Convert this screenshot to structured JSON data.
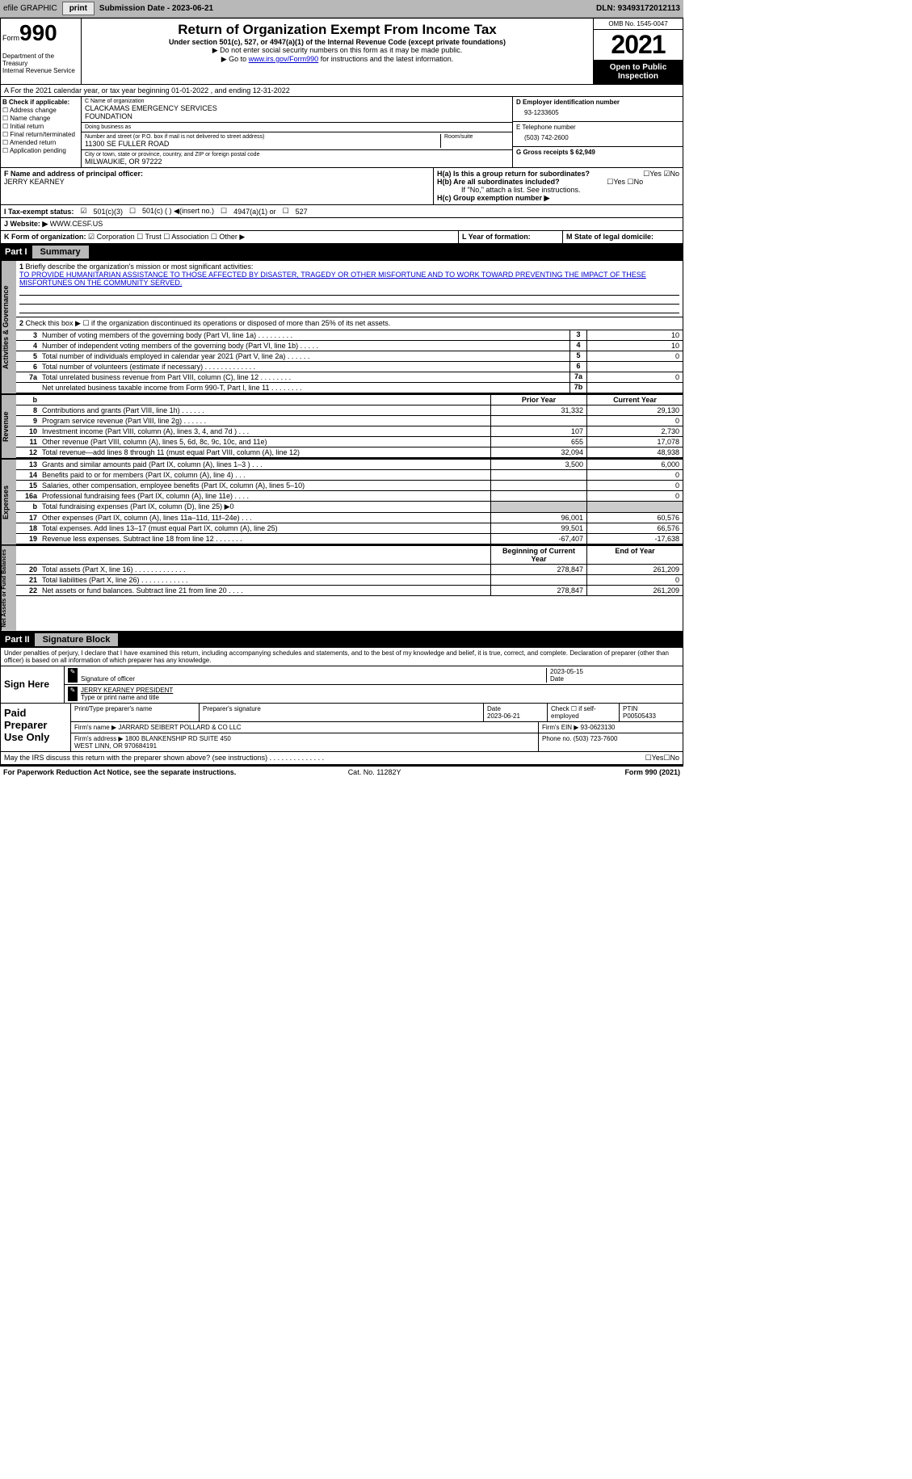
{
  "toolbar": {
    "efile": "efile GRAPHIC",
    "print": "print",
    "sub_label": "Submission Date - 2023-06-21",
    "dln": "DLN: 93493172012113"
  },
  "header": {
    "form": "Form",
    "f990": "990",
    "dept": "Department of the Treasury\nInternal Revenue Service",
    "title": "Return of Organization Exempt From Income Tax",
    "sub1": "Under section 501(c), 527, or 4947(a)(1) of the Internal Revenue Code (except private foundations)",
    "sub2": "▶ Do not enter social security numbers on this form as it may be made public.",
    "sub3_pre": "▶ Go to ",
    "sub3_link": "www.irs.gov/Form990",
    "sub3_post": " for instructions and the latest information.",
    "omb": "OMB No. 1545-0047",
    "year": "2021",
    "open": "Open to Public Inspection"
  },
  "rowA": "A For the 2021 calendar year, or tax year beginning 01-01-2022   , and ending 12-31-2022",
  "colB": {
    "label": "B Check if applicable:",
    "items": [
      "Address change",
      "Name change",
      "Initial return",
      "Final return/terminated",
      "Amended return",
      "Application pending"
    ]
  },
  "colC": {
    "name_l": "C Name of organization",
    "name": "CLACKAMAS EMERGENCY SERVICES\nFOUNDATION",
    "dba_l": "Doing business as",
    "dba": "",
    "street_l": "Number and street (or P.O. box if mail is not delivered to street address)",
    "room_l": "Room/suite",
    "street": "11300 SE FULLER ROAD",
    "city_l": "City or town, state or province, country, and ZIP or foreign postal code",
    "city": "MILWAUKIE, OR  97222"
  },
  "colD": {
    "ein_l": "D Employer identification number",
    "ein": "93-1233605",
    "tel_l": "E Telephone number",
    "tel": "(503) 742-2600",
    "gross": "G Gross receipts $ 62,949"
  },
  "rowF": {
    "l": "F Name and address of principal officer:",
    "name": "JERRY KEARNEY"
  },
  "rowH": {
    "a": "H(a)  Is this a group return for subordinates?",
    "b": "H(b)  Are all subordinates included?",
    "bnote": "If \"No,\" attach a list. See instructions.",
    "c": "H(c)  Group exemption number ▶",
    "yes": "Yes",
    "no": "No"
  },
  "rowI": {
    "l": "I   Tax-exempt status:",
    "a": "501(c)(3)",
    "b": "501(c) (  ) ◀(insert no.)",
    "c": "4947(a)(1) or",
    "d": "527"
  },
  "rowJ": {
    "l": "J  Website: ▶",
    "v": "WWW.CESF.US"
  },
  "rowK": {
    "l": "K Form of organization:",
    "a": "Corporation",
    "b": "Trust",
    "c": "Association",
    "d": "Other ▶",
    "yof": "L Year of formation:",
    "dom": "M State of legal domicile:"
  },
  "part1": {
    "label": "Part I",
    "title": "Summary"
  },
  "vtabs": {
    "a": "Activities & Governance",
    "r": "Revenue",
    "e": "Expenses",
    "n": "Net Assets or Fund Balances"
  },
  "p1": {
    "l1": "Briefly describe the organization's mission or most significant activities:",
    "mission": "TO PROVIDE HUMANITARIAN ASSISTANCE TO THOSE AFFECTED BY DISASTER, TRAGEDY OR OTHER MISFORTUNE AND TO WORK TOWARD PREVENTING THE IMPACT OF THESE MISFORTUNES ON THE COMMUNITY SERVED.",
    "l2": "Check this box ▶ ☐ if the organization discontinued its operations or disposed of more than 25% of its net assets.",
    "lines_gov": [
      {
        "n": "3",
        "t": "Number of voting members of the governing body (Part VI, line 1a)   .    .    .    .    .    .    .    .    .",
        "b": "3",
        "v": "10"
      },
      {
        "n": "4",
        "t": "Number of independent voting members of the governing body (Part VI, line 1b)  .    .    .    .    .",
        "b": "4",
        "v": "10"
      },
      {
        "n": "5",
        "t": "Total number of individuals employed in calendar year 2021 (Part V, line 2a)   .    .    .    .    .    .",
        "b": "5",
        "v": "0"
      },
      {
        "n": "6",
        "t": "Total number of volunteers (estimate if necessary)    .    .    .    .    .    .    .    .    .    .    .    .    .",
        "b": "6",
        "v": ""
      },
      {
        "n": "7a",
        "t": "Total unrelated business revenue from Part VIII, column (C), line 12   .    .    .    .    .    .    .    .",
        "b": "7a",
        "v": "0"
      },
      {
        "n": "",
        "t": "Net unrelated business taxable income from Form 990-T, Part I, line 11  .    .    .    .    .    .    .    .",
        "b": "7b",
        "v": ""
      }
    ],
    "hdr_py": "Prior Year",
    "hdr_cy": "Current Year",
    "lines_rev": [
      {
        "n": "8",
        "t": "Contributions and grants (Part VIII, line 1h)    .    .    .    .    .    .",
        "py": "31,332",
        "cy": "29,130"
      },
      {
        "n": "9",
        "t": "Program service revenue (Part VIII, line 2g)   .    .    .    .    .    .",
        "py": "",
        "cy": "0"
      },
      {
        "n": "10",
        "t": "Investment income (Part VIII, column (A), lines 3, 4, and 7d )   .    .    .",
        "py": "107",
        "cy": "2,730"
      },
      {
        "n": "11",
        "t": "Other revenue (Part VIII, column (A), lines 5, 6d, 8c, 9c, 10c, and 11e)",
        "py": "655",
        "cy": "17,078"
      },
      {
        "n": "12",
        "t": "Total revenue—add lines 8 through 11 (must equal Part VIII, column (A), line 12)",
        "py": "32,094",
        "cy": "48,938"
      }
    ],
    "lines_exp": [
      {
        "n": "13",
        "t": "Grants and similar amounts paid (Part IX, column (A), lines 1–3 )  .    .    .",
        "py": "3,500",
        "cy": "6,000"
      },
      {
        "n": "14",
        "t": "Benefits paid to or for members (Part IX, column (A), line 4)  .    .    .",
        "py": "",
        "cy": "0"
      },
      {
        "n": "15",
        "t": "Salaries, other compensation, employee benefits (Part IX, column (A), lines 5–10)",
        "py": "",
        "cy": "0"
      },
      {
        "n": "16a",
        "t": "Professional fundraising fees (Part IX, column (A), line 11e)  .    .    .    .",
        "py": "",
        "cy": "0"
      },
      {
        "n": "b",
        "t": "Total fundraising expenses (Part IX, column (D), line 25) ▶0",
        "py": "",
        "cy": "",
        "grey": true
      },
      {
        "n": "17",
        "t": "Other expenses (Part IX, column (A), lines 11a–11d, 11f–24e)   .    .    .",
        "py": "96,001",
        "cy": "60,576"
      },
      {
        "n": "18",
        "t": "Total expenses. Add lines 13–17 (must equal Part IX, column (A), line 25)",
        "py": "99,501",
        "cy": "66,576"
      },
      {
        "n": "19",
        "t": "Revenue less expenses. Subtract line 18 from line 12  .    .    .    .    .    .    .",
        "py": "-67,407",
        "cy": "-17,638"
      }
    ],
    "hdr_bcy": "Beginning of Current Year",
    "hdr_eoy": "End of Year",
    "lines_na": [
      {
        "n": "20",
        "t": "Total assets (Part X, line 16)  .    .    .    .    .    .    .    .    .    .    .    .    .",
        "py": "278,847",
        "cy": "261,209"
      },
      {
        "n": "21",
        "t": "Total liabilities (Part X, line 26)  .    .    .    .    .    .    .    .    .    .    .    .",
        "py": "",
        "cy": "0"
      },
      {
        "n": "22",
        "t": "Net assets or fund balances. Subtract line 21 from line 20  .    .    .    .",
        "py": "278,847",
        "cy": "261,209"
      }
    ]
  },
  "part2": {
    "label": "Part II",
    "title": "Signature Block"
  },
  "sig": {
    "decl": "Under penalties of perjury, I declare that I have examined this return, including accompanying schedules and statements, and to the best of my knowledge and belief, it is true, correct, and complete. Declaration of preparer (other than officer) is based on all information of which preparer has any knowledge.",
    "signhere": "Sign Here",
    "sig_l": "Signature of officer",
    "date": "2023-05-15",
    "name": "JERRY KEARNEY  PRESIDENT",
    "name_l": "Type or print name and title",
    "paid": "Paid Preparer Use Only",
    "pp_name_l": "Print/Type preparer's name",
    "pp_sig_l": "Preparer's signature",
    "pp_date_l": "Date",
    "pp_date": "2023-06-21",
    "pp_chk": "Check ☐ if self-employed",
    "ptin_l": "PTIN",
    "ptin": "P00505433",
    "firm_l": "Firm's name   ▶",
    "firm": "JARRARD SEIBERT POLLARD & CO LLC",
    "fein": "Firm's EIN ▶ 93-0623130",
    "addr_l": "Firm's address ▶",
    "addr": "1800 BLANKENSHIP RD SUITE 450\nWEST LINN, OR  970684191",
    "phone": "Phone no. (503) 723-7600",
    "may": "May the IRS discuss this return with the preparer shown above? (see instructions)   .    .    .    .    .    .    .    .    .    .    .    .    .    .",
    "yes": "Yes",
    "no": "No"
  },
  "footer": {
    "l": "For Paperwork Reduction Act Notice, see the separate instructions.",
    "c": "Cat. No. 11282Y",
    "r": "Form 990 (2021)"
  }
}
